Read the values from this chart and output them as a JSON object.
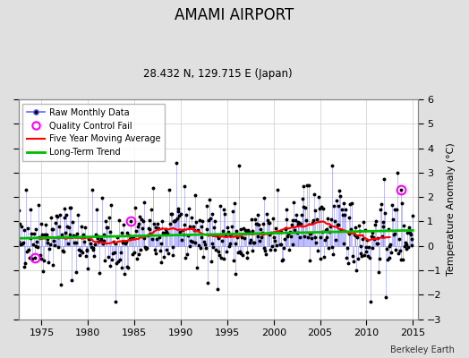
{
  "title": "AMAMI AIRPORT",
  "subtitle": "28.432 N, 129.715 E (Japan)",
  "ylabel": "Temperature Anomaly (°C)",
  "credit": "Berkeley Earth",
  "xlim": [
    1972.5,
    2015.5
  ],
  "ylim": [
    -3.0,
    6.0
  ],
  "yticks": [
    -3,
    -2,
    -1,
    0,
    1,
    2,
    3,
    4,
    5,
    6
  ],
  "xticks": [
    1975,
    1980,
    1985,
    1990,
    1995,
    2000,
    2005,
    2010,
    2015
  ],
  "bg_color": "#e0e0e0",
  "plot_bg_color": "#ffffff",
  "raw_line_color": "#6666ff",
  "raw_dot_color": "#000000",
  "moving_avg_color": "#ff0000",
  "trend_color": "#00bb00",
  "qc_color": "#ff00ff",
  "seed": 42,
  "n_months": 516,
  "start_year": 1972.083,
  "moving_avg_window": 60,
  "qc_fail_indices": [
    26,
    150,
    500
  ],
  "figsize": [
    5.24,
    4.0
  ],
  "dpi": 100
}
